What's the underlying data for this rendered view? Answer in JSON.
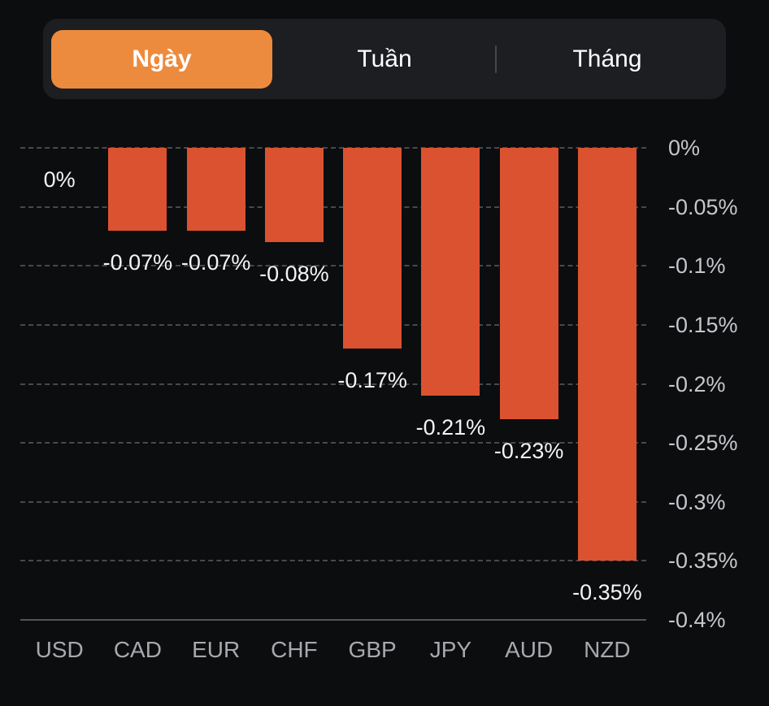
{
  "colors": {
    "background": "#0c0d0f",
    "tab_container": "#1d1e22",
    "tab_active": "#ec8b3d",
    "tab_text": "#ffffff",
    "bar": "#db5230",
    "grid": "#5c5d63",
    "tick_text": "#c6c6cb",
    "value_text": "#f4f4f6",
    "category_text": "#a8a8ad"
  },
  "tabs": {
    "items": [
      {
        "label": "Ngày",
        "active": true
      },
      {
        "label": "Tuần",
        "active": false
      },
      {
        "label": "Tháng",
        "active": false
      }
    ]
  },
  "chart_data": {
    "type": "bar",
    "orientation": "vertical",
    "title": "",
    "xlabel": "",
    "ylabel": "",
    "categories": [
      "USD",
      "CAD",
      "EUR",
      "CHF",
      "GBP",
      "JPY",
      "AUD",
      "NZD"
    ],
    "values": [
      0,
      -0.07,
      -0.07,
      -0.08,
      -0.17,
      -0.21,
      -0.23,
      -0.35
    ],
    "value_labels": [
      "0%",
      "-0.07%",
      "-0.07%",
      "-0.08%",
      "-0.17%",
      "-0.21%",
      "-0.23%",
      "-0.35%"
    ],
    "bar_color": "#db5230",
    "grid": {
      "horizontal": true,
      "style": "dashed"
    },
    "legend": "none",
    "y_axis": {
      "side": "right",
      "max": 0,
      "min": -0.4,
      "tick_values": [
        0,
        -0.05,
        -0.1,
        -0.15,
        -0.2,
        -0.25,
        -0.3,
        -0.35,
        -0.4
      ],
      "tick_labels": [
        "0%",
        "-0.05%",
        "-0.1%",
        "-0.15%",
        "-0.2%",
        "-0.25%",
        "-0.3%",
        "-0.35%",
        "-0.4%"
      ]
    }
  }
}
